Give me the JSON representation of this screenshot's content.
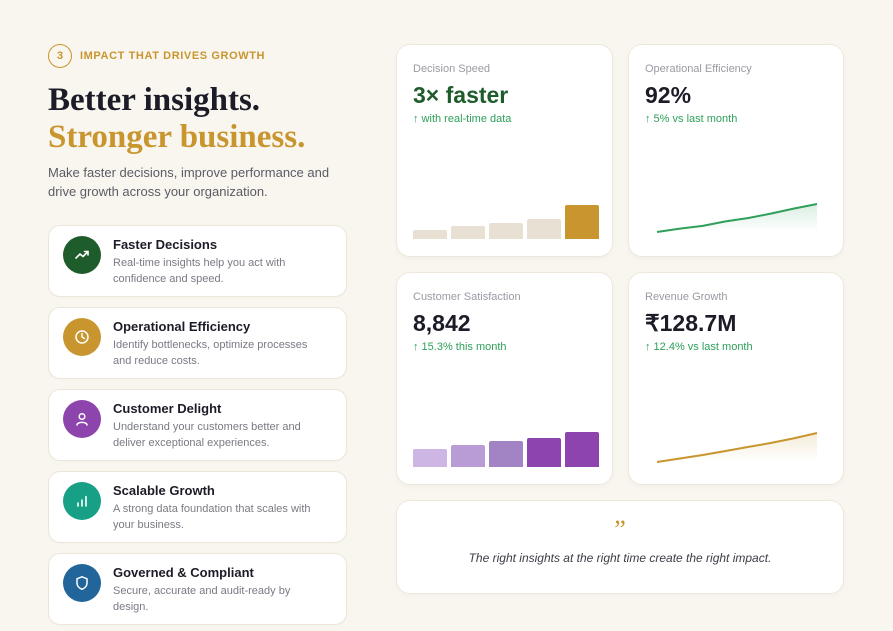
{
  "section": {
    "step_number": "3",
    "step_label": "IMPACT THAT DRIVES GROWTH",
    "headline_line1": "Better insights.",
    "headline_line2": "Stronger business.",
    "lead": "Make faster decisions, improve performance and drive growth across your organization."
  },
  "features": [
    {
      "title": "Faster Decisions",
      "desc": "Real-time insights help you act with confidence and speed.",
      "icon": "trending-up-icon",
      "color": "#1f5c2c"
    },
    {
      "title": "Operational Efficiency",
      "desc": "Identify bottlenecks, optimize processes and reduce costs.",
      "icon": "clock-icon",
      "color": "#c8952e"
    },
    {
      "title": "Customer Delight",
      "desc": "Understand your customers better and deliver exceptional experiences.",
      "icon": "user-icon",
      "color": "#8e44ad"
    },
    {
      "title": "Scalable Growth",
      "desc": "A strong data foundation that scales with your business.",
      "icon": "bar-chart-icon",
      "color": "#17a085"
    },
    {
      "title": "Governed & Compliant",
      "desc": "Secure, accurate and audit-ready by design.",
      "icon": "shield-icon",
      "color": "#21659a"
    }
  ],
  "cards": {
    "decision_speed": {
      "title": "Decision Speed",
      "value": "3× faster",
      "delta": "↑ with real-time data",
      "value_color": "#1f5c2c",
      "bar_values": [
        0.25,
        0.38,
        0.47,
        0.6,
        1.0
      ],
      "bar_colors": [
        "#e8e0d3",
        "#e8e0d3",
        "#e8e0d3",
        "#e8e0d3",
        "#c8952e"
      ]
    },
    "operational_efficiency": {
      "title": "Operational Efficiency",
      "value": "92%",
      "delta": "↑ 5% vs last month",
      "line_color": "#2ea05a",
      "trend": [
        0.0,
        0.12,
        0.22,
        0.38,
        0.5,
        0.66,
        0.84,
        1.0
      ]
    },
    "customer_satisfaction": {
      "title": "Customer Satisfaction",
      "value": "8,842",
      "delta": "↑ 15.3% this month",
      "value_color": "#1c1c28",
      "bar_values": [
        0.5,
        0.63,
        0.74,
        0.83,
        1.0
      ],
      "bar_colors": [
        "#cdb6e4",
        "#b99bd5",
        "#a283c4",
        "#8e44ad",
        "#8e44ad"
      ]
    },
    "revenue_growth": {
      "title": "Revenue Growth",
      "value": "₹128.7M",
      "delta": "↑ 12.4% vs last month",
      "line_color": "#c8952e",
      "trend": [
        0.0,
        0.12,
        0.24,
        0.38,
        0.52,
        0.66,
        0.82,
        1.0
      ]
    }
  },
  "quote": {
    "mark": "”",
    "text": "The right insights at the right time create the right impact."
  }
}
